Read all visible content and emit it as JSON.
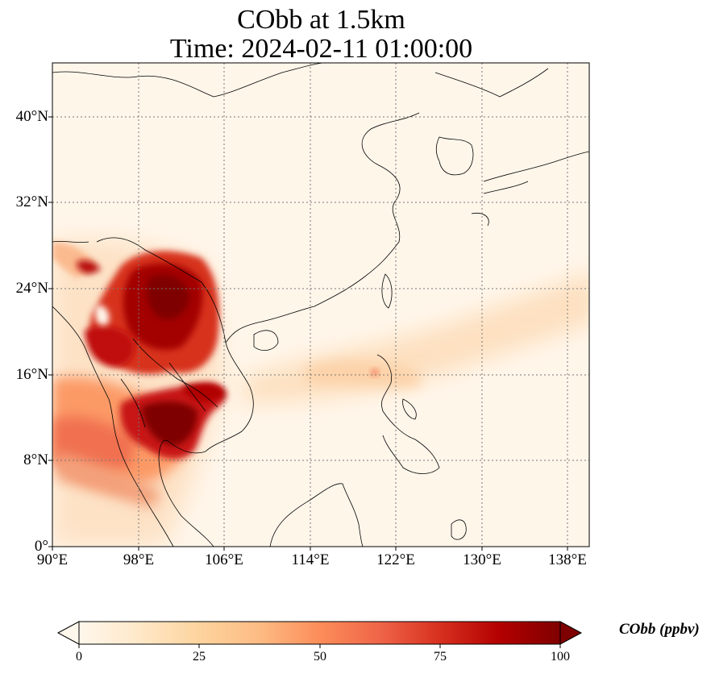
{
  "title": {
    "line1": "CObb at 1.5km",
    "line2": "Time: 2024-02-11 01:00:00"
  },
  "map": {
    "lon_range": [
      90,
      140
    ],
    "lat_range": [
      0,
      45
    ],
    "x_ticks": [
      "90°E",
      "98°E",
      "106°E",
      "114°E",
      "122°E",
      "130°E",
      "138°E"
    ],
    "y_ticks": [
      "0°",
      "8°N",
      "16°N",
      "24°N",
      "32°N",
      "40°N"
    ],
    "gridlines": "dotted",
    "colormap": "OrRd",
    "features": [
      "coastlines",
      "country borders"
    ]
  },
  "colorbar": {
    "label": "CObb (ppbv)",
    "ticks": [
      "0",
      "25",
      "50",
      "75",
      "100"
    ],
    "range": [
      0,
      100
    ],
    "extend": "both",
    "colors": [
      "#fff7ec",
      "#fee8c8",
      "#fdd49e",
      "#fdbb84",
      "#fc8d59",
      "#ef6548",
      "#d7301f",
      "#b30000",
      "#7f0000"
    ]
  }
}
